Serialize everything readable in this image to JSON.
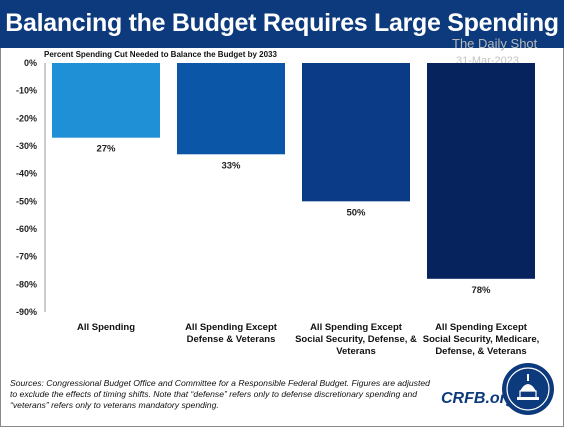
{
  "title": "Balancing the Budget Requires Large Spending Cuts",
  "watermark": {
    "name": "The Daily Shot",
    "date": "31-Mar-2023"
  },
  "chart_data": {
    "type": "bar",
    "title": "Percent Spending Cut Needed to Balance the Budget by 2033",
    "categories": [
      [
        "All Spending"
      ],
      [
        "All Spending Except",
        "Defense & Veterans"
      ],
      [
        "All Spending Except",
        "Social Security, Defense, &",
        "Veterans"
      ],
      [
        "All Spending Except",
        "Social Security, Medicare,",
        "Defense, & Veterans"
      ]
    ],
    "values": [
      -27,
      -33,
      -50,
      -78
    ],
    "data_labels": [
      "27%",
      "33%",
      "50%",
      "78%"
    ],
    "colors": [
      "#1f8fd6",
      "#0b56a6",
      "#0b3a86",
      "#07235e"
    ],
    "ylim": [
      -90,
      0
    ],
    "yticks": [
      0,
      -10,
      -20,
      -30,
      -40,
      -50,
      -60,
      -70,
      -80,
      -90
    ],
    "ytick_labels": [
      "0%",
      "-10%",
      "-20%",
      "-30%",
      "-40%",
      "-50%",
      "-60%",
      "-70%",
      "-80%",
      "-90%"
    ],
    "grid": false
  },
  "footer": {
    "source": "Sources: Congressional Budget Office and Committee for a Responsible Federal Budget. Figures are adjusted to exclude the effects of timing shifts. Note that “defense” refers only to defense discretionary spending and “veterans” refers only to veterans mandatory spending.",
    "brand": "CRFB.org",
    "logo_icon": "capitol-dome-seal-icon"
  }
}
